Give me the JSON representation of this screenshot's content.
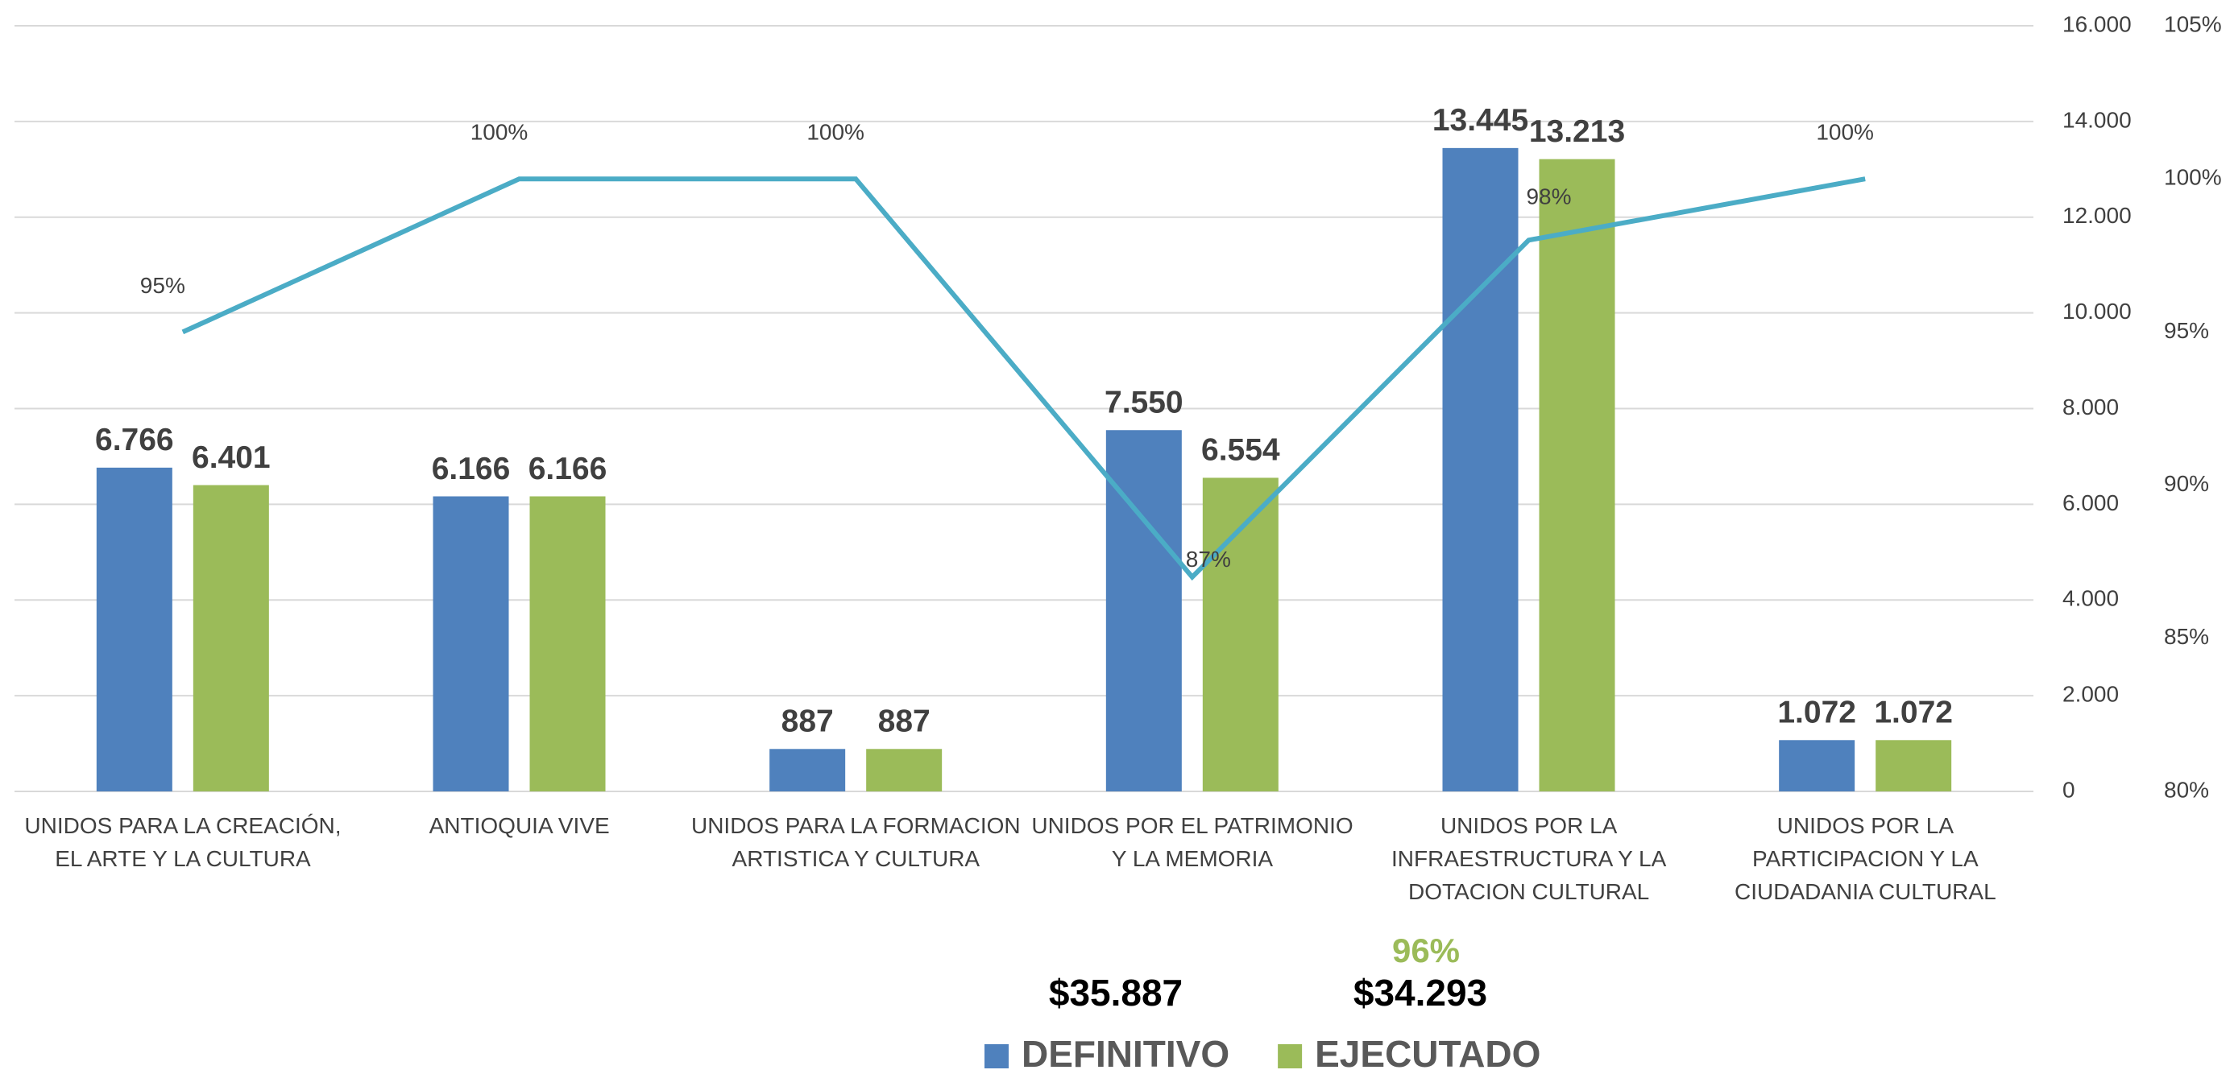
{
  "chart_data": {
    "type": "bar",
    "categories": [
      "UNIDOS PARA LA CREACIÓN, EL ARTE Y LA CULTURA",
      "ANTIOQUIA VIVE",
      "UNIDOS PARA LA FORMACION ARTISTICA Y CULTURA",
      "UNIDOS POR EL PATRIMONIO Y LA MEMORIA",
      "UNIDOS POR LA INFRAESTRUCTURA Y LA DOTACION CULTURAL",
      "UNIDOS POR LA PARTICIPACION Y LA CIUDADANIA CULTURAL"
    ],
    "series": [
      {
        "name": "DEFINITIVO",
        "color": "#4f81bd",
        "values": [
          6766,
          6166,
          887,
          7550,
          13445,
          1072
        ],
        "value_labels": [
          "6.766",
          "6.166",
          "887",
          "7.550",
          "13.445",
          "1.072"
        ]
      },
      {
        "name": "EJECUTADO",
        "color": "#9bbb59",
        "values": [
          6401,
          6166,
          887,
          6554,
          13213,
          1072
        ],
        "value_labels": [
          "6.401",
          "6.166",
          "887",
          "6.554",
          "13.213",
          "1.072"
        ]
      },
      {
        "type": "line",
        "axis": "y2",
        "color": "#4bacc6",
        "values": [
          95,
          100,
          100,
          87,
          98,
          100
        ],
        "value_labels": [
          "95%",
          "100%",
          "100%",
          "87%",
          "98%",
          "100%"
        ]
      }
    ],
    "ylim": [
      0,
      16000
    ],
    "yticks": [
      0,
      {
        "value": 2000,
        "label": "2.000"
      },
      {
        "value": 4000,
        "label": "4.000"
      },
      {
        "value": 6000,
        "label": "6.000"
      },
      {
        "value": 8000,
        "label": "8.000"
      },
      {
        "value": 10000,
        "label": "10.000"
      },
      {
        "value": 12000,
        "label": "12.000"
      },
      {
        "value": 14000,
        "label": "14.000"
      },
      {
        "value": 16000,
        "label": "16.000"
      }
    ],
    "y2lim": [
      80,
      105
    ],
    "y2ticks": [
      {
        "value": 80,
        "label": "80%"
      },
      {
        "value": 85,
        "label": "85%"
      },
      {
        "value": 90,
        "label": "90%"
      },
      {
        "value": 95,
        "label": "95%"
      },
      {
        "value": 100,
        "label": "100%"
      },
      {
        "value": 105,
        "label": "105%"
      }
    ],
    "grid": true,
    "annotations": [
      "$35.887",
      "$34.293",
      "96%"
    ]
  }
}
